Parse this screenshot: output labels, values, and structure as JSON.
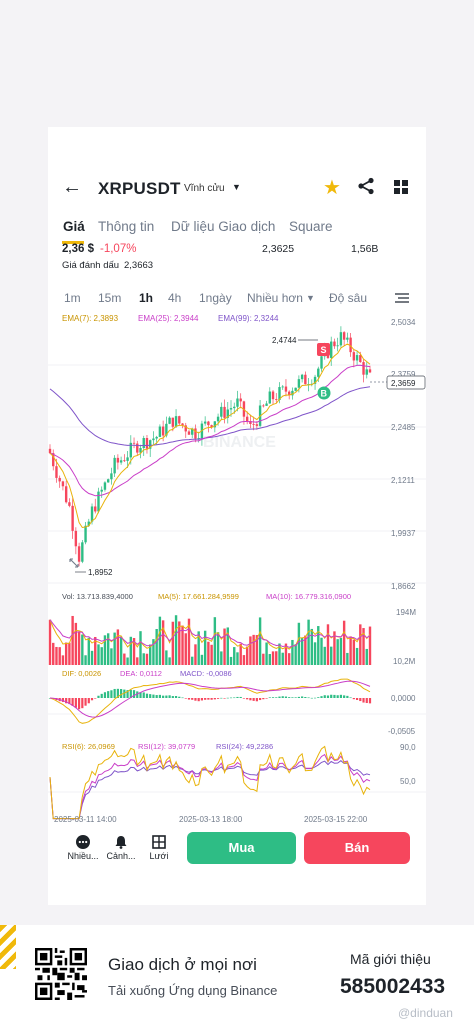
{
  "header": {
    "pair": "XRPUSDT",
    "subtitle": "Vĩnh cửu"
  },
  "tabs": [
    "Giá",
    "Thông tin",
    "Dữ liệu Giao dịch",
    "Square"
  ],
  "price": {
    "last": "2,36 $",
    "change": "-1,07%",
    "mid": "2,3625",
    "volume": "1,56B",
    "mark_label": "Giá đánh dấu",
    "mark_value": "2,3663"
  },
  "timeframes": [
    "1m",
    "15m",
    "1h",
    "4h",
    "1ngày",
    "Nhiều hơn",
    "Độ sâu"
  ],
  "active_timeframe": "1h",
  "ema": {
    "ema7": "EMA(7): 2,3893",
    "ema25": "EMA(25): 2,3944",
    "ema99": "EMA(99): 2,3244"
  },
  "price_axis": [
    "2,5034",
    "2,3759",
    "2,2485",
    "2,1211",
    "1,9937",
    "1,8662"
  ],
  "high_label": "2,4744",
  "low_label": "1,8952",
  "current_price_tag": "2,3659",
  "sell_marker": "S",
  "buy_marker": "B",
  "chart_watermark": "BINANCE",
  "volume_panel": {
    "vol": "Vol: 13.713.839,4000",
    "ma5": "MA(5): 17.661.284,9599",
    "ma10": "MA(10): 16.779.316,0900",
    "axis_top": "194M",
    "axis_bottom": "10,2M"
  },
  "macd_panel": {
    "dif": "DIF: 0,0026",
    "dea": "DEA: 0,0112",
    "macd": "MACD: -0,0086",
    "axis_mid": "0,0000",
    "axis_bottom": "-0,0505"
  },
  "rsi_panel": {
    "rsi6": "RSI(6): 26,0969",
    "rsi12": "RSI(12): 39,0779",
    "rsi24": "RSI(24): 49,2286",
    "axis_top": "90,0",
    "axis_mid": "50,0"
  },
  "time_axis": [
    "2025-03-11 14:00",
    "2025-03-13 18:00",
    "2025-03-15 22:00"
  ],
  "bottom_bar": {
    "more": "Nhiều...",
    "alert": "Cảnh...",
    "grid": "Lưới",
    "buy": "Mua",
    "sell": "Bán"
  },
  "footer": {
    "title": "Giao dịch ở mọi nơi",
    "subtitle": "Tải xuống Ứng dụng Binance",
    "ref_label": "Mã giới thiệu",
    "ref_code": "585002433",
    "watermark": "@dinduan"
  },
  "colors": {
    "up": "#2ebd85",
    "down": "#f6465d",
    "accent": "#f0b90b",
    "ema7": "#e8b30b",
    "ema25": "#c93ec8",
    "ema99": "#7f54c9"
  }
}
